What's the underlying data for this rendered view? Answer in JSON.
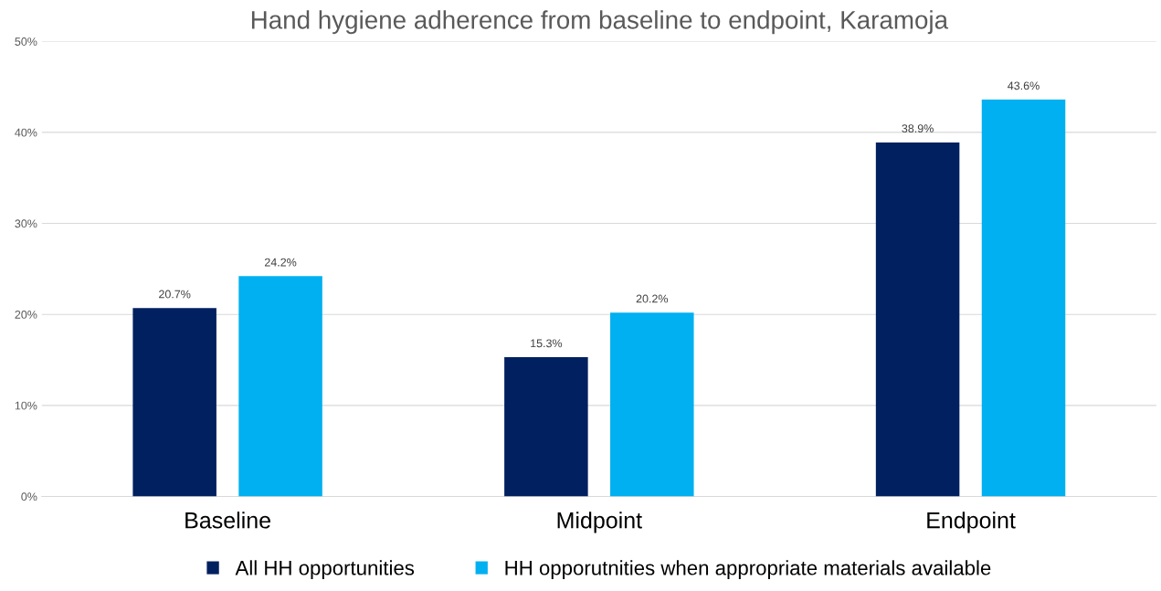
{
  "chart_data": {
    "type": "bar",
    "title": "Hand hygiene adherence from baseline to endpoint, Karamoja",
    "categories": [
      "Baseline",
      "Midpoint",
      "Endpoint"
    ],
    "series": [
      {
        "name": "All HH opportunities",
        "color": "#002060",
        "values": [
          20.7,
          15.3,
          38.9
        ],
        "value_labels": [
          "20.7%",
          "15.3%",
          "38.9%"
        ]
      },
      {
        "name": "HH opporutnities when appropriate materials available",
        "color": "#00b0f0",
        "values": [
          24.2,
          20.2,
          43.6
        ],
        "value_labels": [
          "24.2%",
          "20.2%",
          "43.6%"
        ]
      }
    ],
    "ylim": [
      0,
      50
    ],
    "yticks": [
      {
        "value": 0,
        "label": "0%"
      },
      {
        "value": 10,
        "label": "10%"
      },
      {
        "value": 20,
        "label": "20%"
      },
      {
        "value": 30,
        "label": "30%"
      },
      {
        "value": 40,
        "label": "40%"
      },
      {
        "value": 50,
        "label": "50%"
      }
    ],
    "grid": "y",
    "legend": "bottom"
  }
}
